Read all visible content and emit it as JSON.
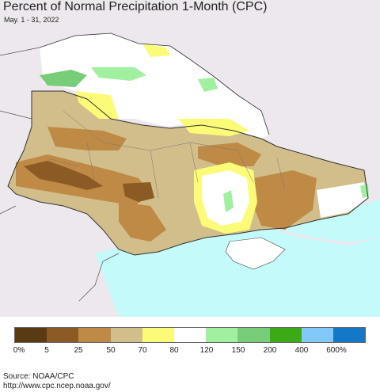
{
  "title": "Percent of Normal Precipitation 1-Month (CPC)",
  "date_range": "May. 1 - 31, 2022",
  "legend": {
    "colors": [
      "#5a3a12",
      "#8c5a24",
      "#be8a45",
      "#d2be8a",
      "#fbfb78",
      "#ffffff",
      "#a0f0a0",
      "#78cd78",
      "#3caa14",
      "#82c8fa",
      "#1478c8"
    ],
    "ticks": [
      "0%",
      "5",
      "25",
      "50",
      "70",
      "80",
      "120",
      "150",
      "200",
      "400",
      "600%"
    ]
  },
  "source_line": "Source: NOAA/CPC",
  "url_line": "http://www.cpc.ncep.noaa.gov/"
}
